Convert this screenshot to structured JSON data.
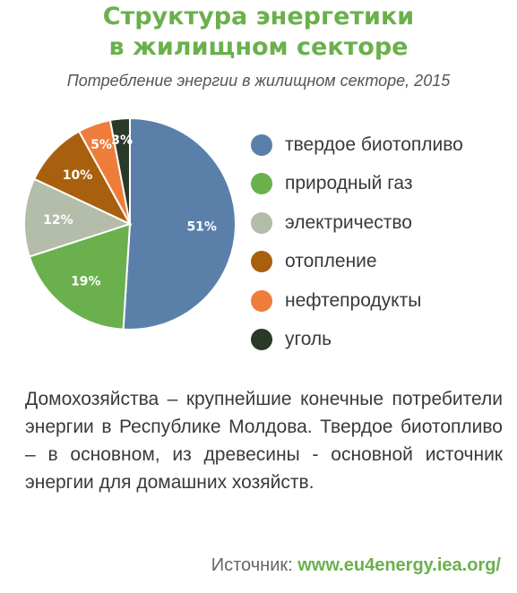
{
  "header": {
    "title_line1": "Структура энергетики",
    "title_line2": "в жилищном секторе",
    "subtitle": "Потребление энергии в жилищном секторе, 2015"
  },
  "chart_data": {
    "type": "pie",
    "title": "Структура энергетики в жилищном секторе",
    "subtitle": "Потребление энергии в жилищном секторе, 2015",
    "legend_position": "right",
    "slices": [
      {
        "label": "твердое биотопливо",
        "value": 51,
        "value_label": "51%",
        "color": "#5a80aa"
      },
      {
        "label": "природный газ",
        "value": 19,
        "value_label": "19%",
        "color": "#6ab04c"
      },
      {
        "label": "электричество",
        "value": 12,
        "value_label": "12%",
        "color": "#b4bcaa"
      },
      {
        "label": "отопление",
        "value": 10,
        "value_label": "10%",
        "color": "#a8600f"
      },
      {
        "label": "нефтепродукты",
        "value": 5,
        "value_label": "5%",
        "color": "#ee7d3b"
      },
      {
        "label": "уголь",
        "value": 3,
        "value_label": "3%",
        "color": "#2b3a28"
      }
    ]
  },
  "description": "Домохозяйства – крупнейшие конечные потребители энергии в Республике Молдова. Твердое биотопливо – в основном, из древесины - основной источник энергии для домашних хозяйств.",
  "source": {
    "label": "Источник: ",
    "link": "www.eu4energy.iea.org/"
  }
}
